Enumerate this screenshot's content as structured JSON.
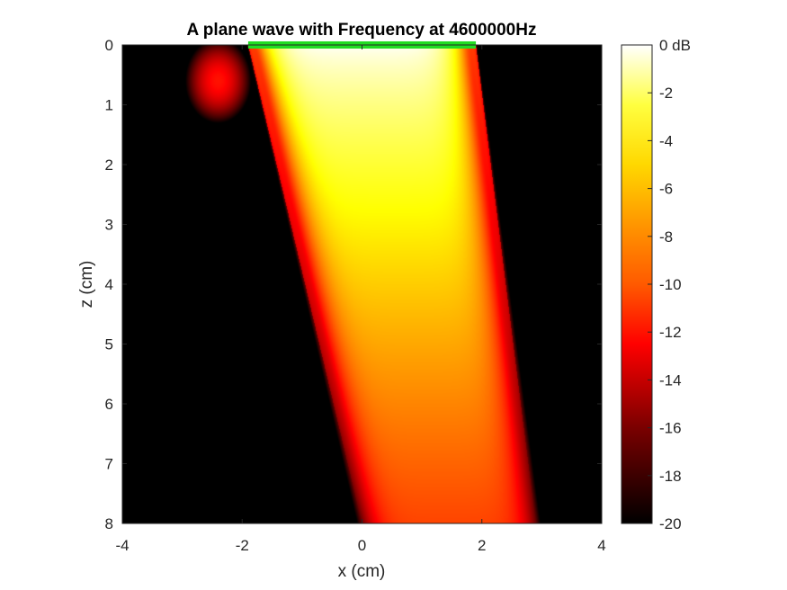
{
  "chart_data": {
    "type": "heatmap",
    "title": "A plane wave with Frequency at 4600000Hz",
    "xlabel": "x (cm)",
    "ylabel": "z (cm)",
    "xlim": [
      -4,
      4
    ],
    "ylim": [
      0,
      8
    ],
    "y_reversed": true,
    "x_ticks": [
      -4,
      -2,
      0,
      2,
      4
    ],
    "y_ticks": [
      0,
      1,
      2,
      3,
      4,
      5,
      6,
      7,
      8
    ],
    "colorbar": {
      "colormap": "hot",
      "clim": [
        -20,
        0
      ],
      "ticks": [
        0,
        -2,
        -4,
        -6,
        -8,
        -10,
        -12,
        -14,
        -16,
        -18,
        -20
      ],
      "tick_labels": [
        "0 dB",
        "-2",
        "-4",
        "-6",
        "-8",
        "-10",
        "-12",
        "-14",
        "-16",
        "-18",
        "-20"
      ]
    },
    "background_value_db": -20,
    "field": {
      "description_values": {
        "aperture_x": [
          -1.9,
          1.9
        ],
        "beam_left_edge": [
          [
            0,
            -1.9
          ],
          [
            8,
            0
          ]
        ],
        "beam_right_edge": [
          [
            0,
            1.9
          ],
          [
            8,
            2.9
          ]
        ],
        "center_db_near": 0,
        "center_db_far": -10.5,
        "edge_db": -17
      }
    },
    "transducer": {
      "x": [
        -1.9,
        1.9
      ],
      "z": 0,
      "color": "#22dd22"
    }
  }
}
